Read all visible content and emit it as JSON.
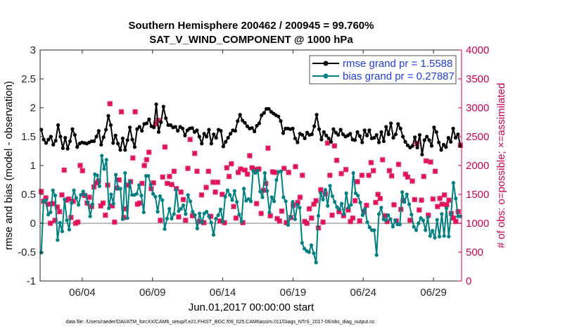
{
  "chart_data": {
    "type": "line",
    "title": "Southern Hemisphere 200462 / 200945 = 99.760%",
    "subtitle": "SAT_V_WIND_COMPONENT @ 1000 hPa",
    "xlabel": "Jun.01,2017 00:00:00 start",
    "ylabel_left": "rmse and bias (model - observation)",
    "ylabel_right": "# of obs: o=possible; ×=assimilated",
    "ylim_left": [
      -1,
      3
    ],
    "ylim_right": [
      0,
      4000
    ],
    "yticks_left": [
      "-1",
      "-0.5",
      "0",
      "0.5",
      "1",
      "1.5",
      "2",
      "2.5",
      "3"
    ],
    "yticks_right": [
      "0",
      "500",
      "1000",
      "1500",
      "2000",
      "2500",
      "3000",
      "3500",
      "4000"
    ],
    "xlim": [
      0,
      30
    ],
    "xticks": [
      {
        "pos": 3,
        "label": "06/04"
      },
      {
        "pos": 8,
        "label": "06/09"
      },
      {
        "pos": 13,
        "label": "06/14"
      },
      {
        "pos": 18,
        "label": "06/19"
      },
      {
        "pos": 23,
        "label": "06/24"
      },
      {
        "pos": 28,
        "label": "06/29"
      }
    ],
    "legend_position": "top-right",
    "footnote": "data file: /Users/raeder/DAI/ATM_forcXX/CAM6_setup/f.e21.FHIST_BGC.f09_025.CAM6assim.011/Diags_NTrS_2017-06/obs_diag_output.nc",
    "colors": {
      "rmse": "#000000",
      "bias": "#008080",
      "obs": "#e0105a",
      "zero": "#b4b4b4",
      "right_axis": "#cc0055",
      "legend_text": "#1f3fd6"
    },
    "series": [
      {
        "name": "rmse grand pr = 1.5588",
        "values": [
          1.62,
          1.45,
          1.39,
          1.45,
          1.5,
          1.36,
          1.43,
          1.7,
          1.5,
          1.3,
          1.48,
          1.29,
          1.42,
          1.63,
          1.53,
          1.32,
          1.38,
          1.4,
          1.39,
          1.38,
          1.4,
          1.42,
          1.42,
          1.5,
          1.6,
          1.36,
          1.49,
          1.62,
          1.86,
          1.7,
          1.39,
          1.52,
          1.38,
          1.27,
          1.47,
          1.27,
          1.44,
          1.66,
          1.45,
          1.32,
          1.63,
          1.67,
          1.6,
          1.72,
          1.73,
          1.8,
          1.68,
          1.66,
          2.06,
          1.58,
          1.75,
          2.02,
          1.82,
          1.7,
          1.7,
          1.66,
          1.67,
          1.6,
          1.67,
          1.64,
          1.52,
          1.61,
          1.64,
          1.65,
          1.58,
          1.61,
          1.5,
          1.38,
          1.55,
          1.5,
          1.62,
          1.38,
          1.54,
          1.48,
          1.62,
          1.6,
          1.33,
          1.41,
          1.48,
          1.55,
          1.61,
          1.6,
          1.77,
          1.88,
          1.78,
          1.74,
          1.68,
          1.64,
          1.65,
          1.59,
          1.69,
          1.73,
          1.87,
          1.91,
          1.98,
          1.98,
          1.93,
          1.9,
          1.87,
          1.85,
          1.77,
          1.56,
          1.64,
          1.64,
          1.63,
          1.64,
          1.47,
          1.4,
          1.55,
          1.53,
          1.47,
          1.57,
          1.53,
          1.54,
          1.68,
          1.88,
          1.63,
          1.45,
          1.58,
          1.52,
          1.47,
          1.41,
          1.63,
          1.57,
          1.53,
          1.62,
          1.54,
          1.5,
          1.52,
          1.55,
          1.45,
          1.44,
          1.58,
          1.51,
          1.4,
          1.61,
          1.52,
          1.61,
          1.47,
          1.48,
          1.53,
          1.4,
          1.58,
          1.42,
          1.67,
          1.54,
          1.73,
          1.48,
          1.54,
          1.72,
          1.64,
          1.5,
          1.41,
          1.35,
          1.31,
          1.34,
          1.49,
          1.31,
          1.53,
          1.19,
          1.44,
          1.5,
          1.44,
          1.34,
          1.66,
          1.58,
          1.4,
          1.27,
          1.36,
          1.32,
          1.48,
          1.41,
          1.64,
          1.48,
          1.54,
          1.34
        ]
      },
      {
        "name": "bias grand pr = 0.27887",
        "values": [
          -0.51,
          0.38,
          0.4,
          0.15,
          0.19,
          0.57,
          0.48,
          -0.29,
          0.01,
          -0.14,
          0.41,
          0.05,
          -0.11,
          0.35,
          0.57,
          0.44,
          0.32,
          0.49,
          0.55,
          0.49,
          0.36,
          0.12,
          0.33,
          0.85,
          0.83,
          0.64,
          1.17,
          0.94,
          1.1,
          0.26,
          0.5,
          0.34,
          0.84,
          0.6,
          0.6,
          0.07,
          0.87,
          0.09,
          0.72,
          0.49,
          0.49,
          0.51,
          0.66,
          0.48,
          0.19,
          0.82,
          0.82,
          0.67,
          0.51,
          0.46,
          0.2,
          0.47,
          0.4,
          -0.1,
          0.08,
          0.25,
          0.08,
          0.16,
          0.58,
          0.21,
          0.25,
          0.31,
          0.16,
          0.49,
          0.38,
          0.2,
          0.14,
          -0.09,
          0.17,
          0.01,
          0.17,
          0.2,
          0.12,
          0.01,
          -0.2,
          0.08,
          0.14,
          0.24,
          0.03,
          0.46,
          0.57,
          0.49,
          0.4,
          0.56,
          0.37,
          0.15,
          0.03,
          0.6,
          0.39,
          0.42,
          0.38,
          0.91,
          0.87,
          0.91,
          0.55,
          0.45,
          0.87,
          0.56,
          0.19,
          0.45,
          0.38,
          0.75,
          0.89,
          0.9,
          0.45,
          0.38,
          -0.03,
          0.11,
          0.37,
          0.07,
          0.32,
          0.27,
          -0.34,
          -0.44,
          -0.48,
          -0.5,
          -0.38,
          -0.52,
          -0.68,
          0.13,
          0.52,
          0.41,
          0.58,
          0.3,
          0.65,
          0.47,
          0.37,
          0.28,
          0.24,
          0.34,
          0.16,
          0.52,
          0.27,
          0.32,
          0.87,
          0.52,
          0.48,
          0.36,
          0.14,
          0.25,
          0.02,
          -0.07,
          -0.12,
          -0.12,
          -0.55,
          0.16,
          0.27,
          0.07,
          0.05,
          0.14,
          0.07,
          -0.06,
          0.05,
          -0.02,
          -0.02,
          0.54,
          0.37,
          0.5,
          0.33,
          0.15,
          -0.06,
          -0.12,
          0.0,
          0.09,
          0.05,
          -0.12,
          0.1,
          -0.22,
          -0.13,
          -0.25,
          0.06,
          -0.23,
          0.16,
          -0.22,
          0.26,
          -0.23,
          0.16,
          0.7,
          0.43,
          0.12,
          0.12
        ]
      }
    ],
    "obs_assimilated": [
      1550,
      1380,
      1440,
      1330,
      1000,
      1340,
      1050,
      1280,
      1200,
      1490,
      1920,
      1400,
      1420,
      1100,
      1380,
      1000,
      1020,
      2000,
      1910,
      1480,
      1350,
      1450,
      1290,
      1630,
      1700,
      1730,
      1300,
      1350,
      1140,
      1660,
      3070,
      1300,
      1020,
      1610,
      1750,
      2930,
      1100,
      1250,
      1660,
      1720,
      2130,
      2930,
      1330,
      1350,
      1690,
      2000,
      2100,
      2230,
      1600,
      1700,
      2720,
      2780,
      1050,
      1800,
      2320,
      1690,
      1810,
      1670,
      1900,
      1600,
      1110,
      1540,
      1410,
      1050,
      1950,
      2450,
      1130,
      2210,
      1900,
      1030,
      1490,
      1010,
      1620,
      1900,
      1120,
      1710,
      1540,
      1710,
      1040,
      1500,
      1010,
      1960,
      1810,
      2030,
      1290,
      1090,
      1880,
      1940,
      1010,
      1920,
      1850,
      2170,
      1960,
      1930,
      1340,
      1940,
      1170,
      1570,
      1690,
      2300,
      1130,
      1890,
      1880,
      1080,
      1040,
      1210,
      1950,
      1010,
      1880,
      1100,
      1310,
      1980,
      1360,
      1450,
      1830,
      1030,
      1000,
      1250,
      1090,
      1330,
      1390,
      920,
      1580,
      1020,
      1510,
      2390,
      1830,
      1140,
      2340,
      2090,
      1200,
      1860,
      1130,
      1930,
      1230,
      1030,
      1090,
      1390,
      1720,
      1040,
      1830,
      1200,
      1310,
      1830,
      2050,
      1910,
      1360,
      1500,
      1430,
      2100,
      1130,
      1030,
      1910,
      1820,
      1320,
      1040,
      2020,
      1240,
      1390,
      1850,
      1800,
      1050,
      1730,
      1410,
      2380,
      1230,
      1400,
      1810,
      2080,
      1140,
      2060,
      1420,
      1900,
      1290,
      1430,
      1330,
      1490,
      1320,
      1400,
      1170,
      1090,
      1030,
      1200,
      2350
    ]
  }
}
